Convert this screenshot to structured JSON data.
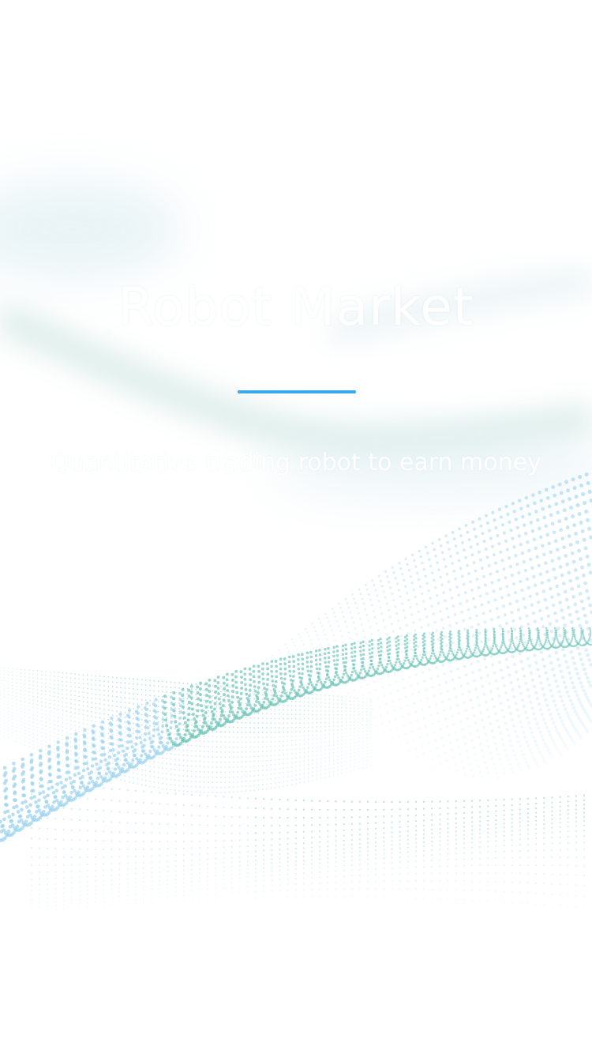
{
  "splash": {
    "title": "Robot Market",
    "subtitle": "Quantitative trading robot to earn money"
  },
  "colors": {
    "accent": "#3aa9e8",
    "wave_teal": "#6cc4b7",
    "wave_blue": "#9fd4ef",
    "mist": "#b9dcd6",
    "background": "#ffffff"
  }
}
